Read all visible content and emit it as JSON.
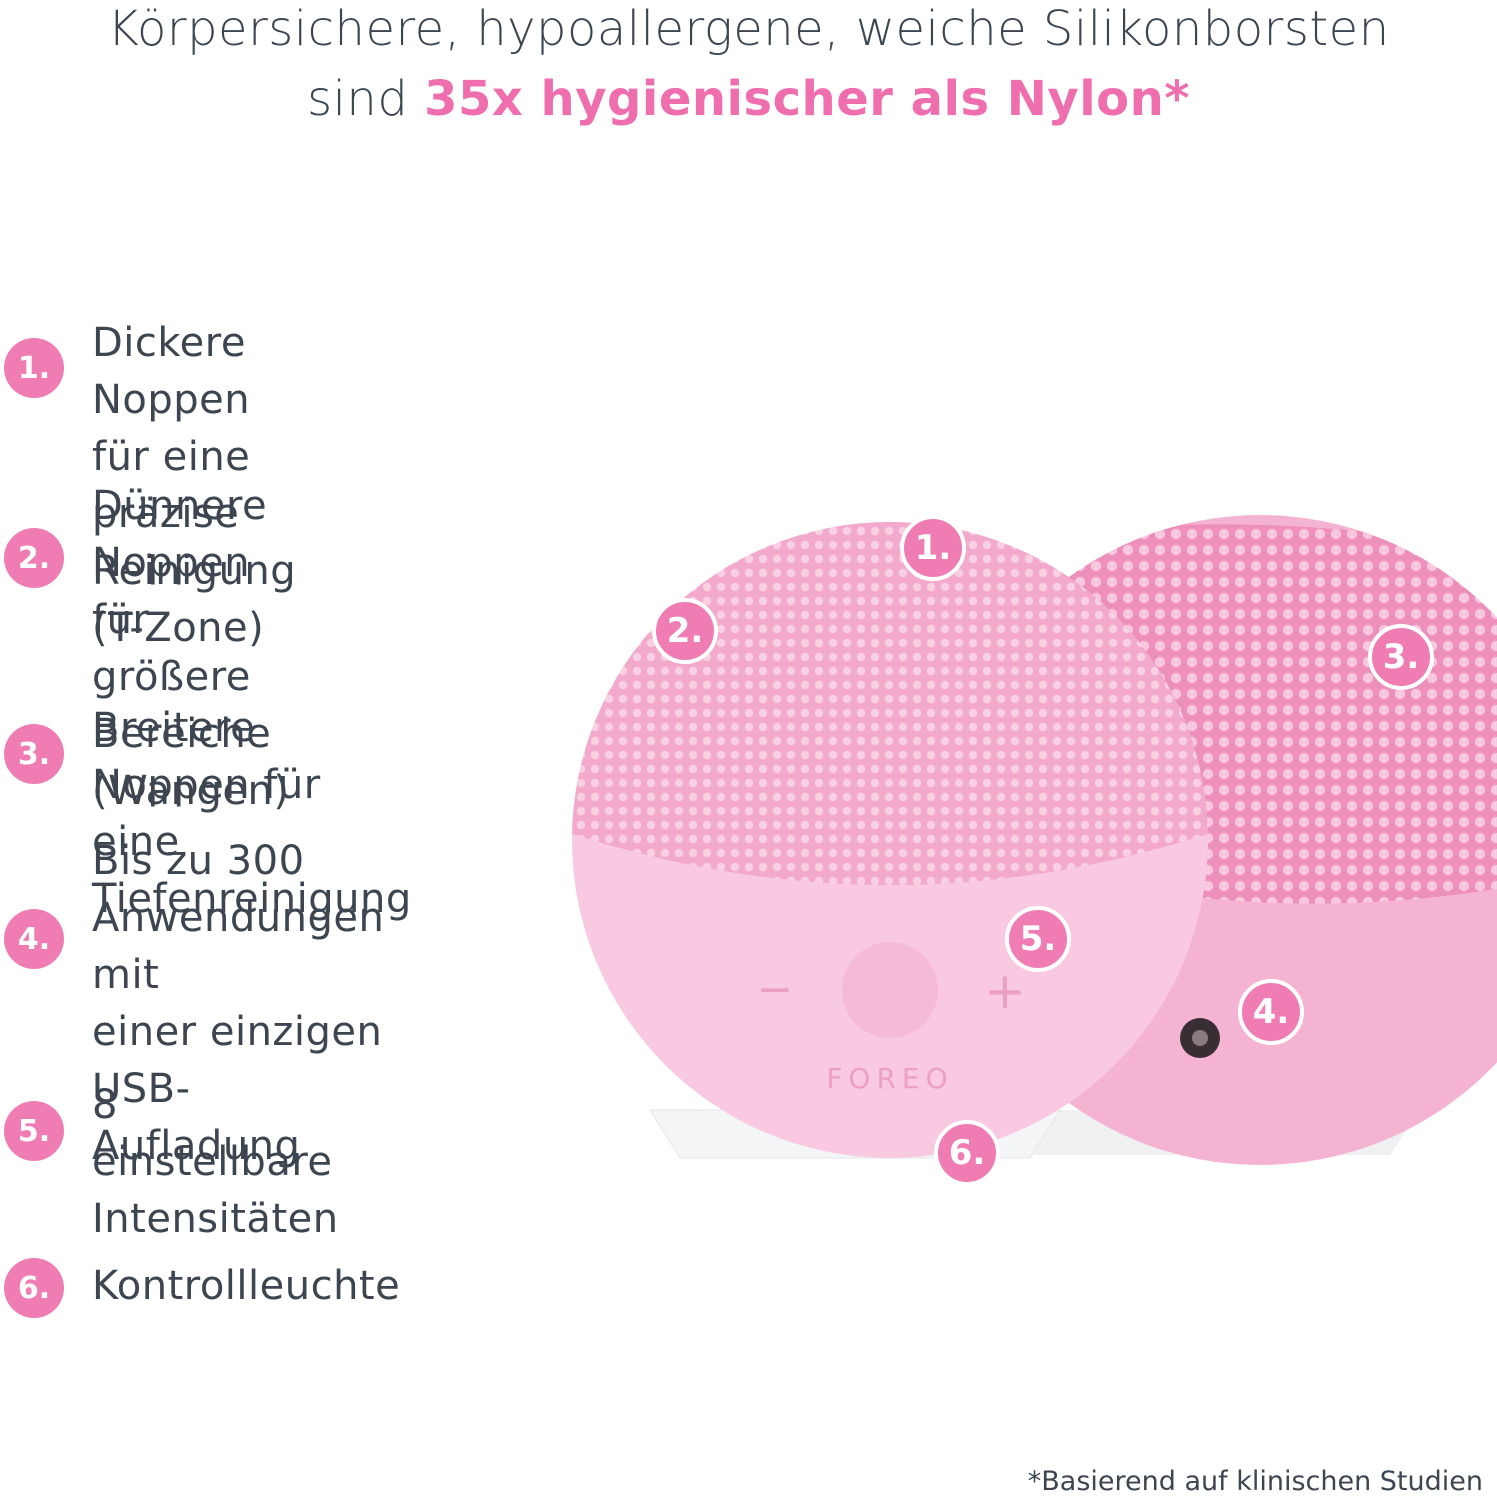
{
  "headline": {
    "line1": "Körpersichere, hypoallergene, weiche Silikonborsten",
    "line2_prefix": "sind ",
    "line2_accent": "35x hygienischer als Nylon*"
  },
  "features": [
    {
      "num": "1.",
      "text": "Dickere Noppen für eine\npräzise Reinigung (T-Zone)"
    },
    {
      "num": "2.",
      "text": "Dünnere Noppen\nfür größere\nBereiche (Wangen)"
    },
    {
      "num": "3.",
      "text": "Breitere Noppen für\neine Tiefenreinigung"
    },
    {
      "num": "4.",
      "text": "Bis zu 300\nAnwendungen mit\neiner einzigen\nUSB-Aufladung"
    },
    {
      "num": "5.",
      "text": "8 einstellbare\nIntensitäten"
    },
    {
      "num": "6.",
      "text": "Kontrollleuchte"
    }
  ],
  "device": {
    "brand": "FOREO",
    "minus_symbol": "−",
    "plus_symbol": "+",
    "callouts": [
      "1.",
      "2.",
      "3.",
      "4.",
      "5.",
      "6."
    ]
  },
  "colors": {
    "accent": "#ef6eae",
    "badge": "#ef7db4",
    "device_body_front": "#f8c9e0",
    "device_body_back": "#f5b3d2",
    "text": "#3d4650"
  },
  "footnote": "*Basierend auf klinischen Studien"
}
